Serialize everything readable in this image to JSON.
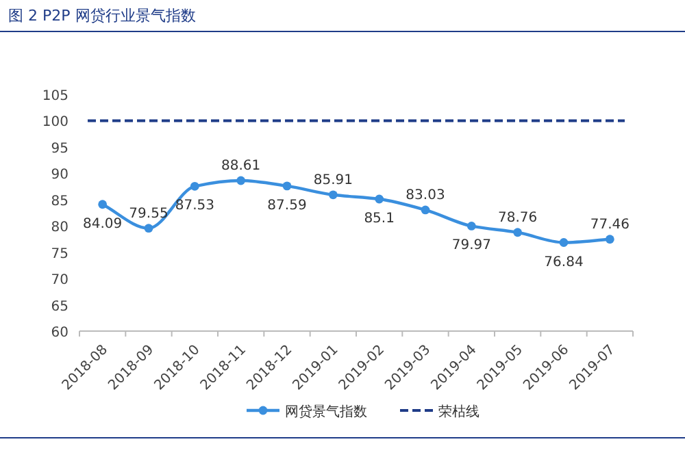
{
  "chart_data": {
    "type": "line",
    "title": "图 2  P2P 网贷行业景气指数",
    "categories": [
      "2018-08",
      "2018-09",
      "2018-10",
      "2018-11",
      "2018-12",
      "2019-01",
      "2019-02",
      "2019-03",
      "2019-04",
      "2019-05",
      "2019-06",
      "2019-07"
    ],
    "series": [
      {
        "name": "网贷景气指数",
        "color": "#3a8fde",
        "values": [
          84.09,
          79.55,
          87.53,
          88.61,
          87.59,
          85.91,
          85.1,
          83.03,
          79.97,
          78.76,
          76.84,
          77.46
        ]
      }
    ],
    "ylim": [
      60,
      105
    ],
    "yticks": [
      60,
      65,
      70,
      75,
      80,
      85,
      90,
      95,
      100,
      105
    ],
    "marker": "circle",
    "line_style": "solid",
    "data_labels": true,
    "legend": "bottom",
    "ref_lines": [
      {
        "axis": "y",
        "value": 100,
        "label": "荣枯线",
        "color": "#1f3c88",
        "line_style": "dashed"
      }
    ]
  }
}
